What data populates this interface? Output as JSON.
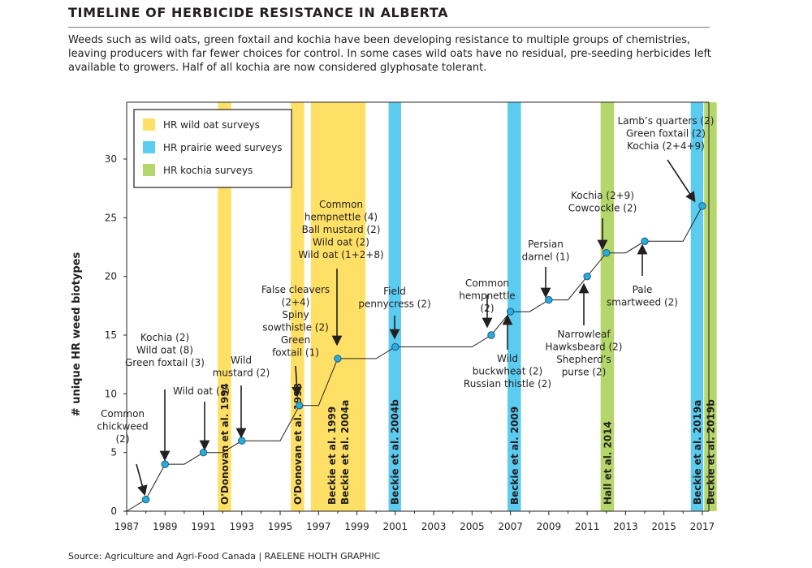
{
  "header": {
    "title": "TIMELINE OF HERBICIDE RESISTANCE IN ALBERTA",
    "description": "Weeds such as wild oats, green foxtail and kochia have been developing resistance to multiple groups of chemistries, leaving producers with far fewer choices for control. In some cases wild oats have no residual, pre-seeding herbicides left available to growers. Half of all kochia are now considered glyphosate tolerant."
  },
  "footer": {
    "source": "Source: Agriculture and Agri-Food Canada  |  RAELENE HOLTH GRAPHIC"
  },
  "colors": {
    "wild_oat": "#ffe066",
    "prairie": "#5bcbf0",
    "kochia": "#b5d66b",
    "line": "#231f20",
    "point": "#29abe2"
  },
  "chart_data": {
    "type": "line",
    "xlim": [
      1987,
      1987.49
    ],
    "ylim": [
      0,
      35
    ],
    "xticks": [
      1987,
      1989,
      1991,
      1993,
      1995,
      1997,
      1999,
      2001,
      2003,
      2005,
      2007,
      2009,
      2011,
      2013,
      2015,
      2017
    ],
    "yticks": [
      0,
      5,
      10,
      15,
      20,
      25,
      30
    ],
    "ylabel": "# unique HR weed biotypes",
    "xlabel": "",
    "grid": false,
    "legend": {
      "position": "top-left",
      "items": [
        {
          "label": "HR wild oat surveys",
          "color": "#ffe066"
        },
        {
          "label": "HR prairie weed surveys",
          "color": "#5bcbf0"
        },
        {
          "label": "HR kochia surveys",
          "color": "#b5d66b"
        }
      ]
    },
    "series": [
      {
        "x": [
          1987,
          1988,
          1989,
          1990,
          1991,
          1992,
          1993,
          1994,
          1995,
          1996,
          1997,
          1998,
          1999,
          2000,
          2001,
          2002,
          2003,
          2004,
          2005,
          2006,
          2007,
          2008,
          2009,
          2010,
          2011,
          2012,
          2013,
          2014,
          2015,
          2016,
          2017
        ],
        "y": [
          0,
          1,
          4,
          4,
          5,
          5,
          6,
          6,
          6,
          9,
          9,
          13,
          13,
          13,
          14,
          14,
          14,
          14,
          14,
          15,
          17,
          17,
          18,
          18,
          20,
          22,
          22,
          23,
          23,
          23,
          26
        ]
      }
    ],
    "survey_bands": [
      {
        "type": "wild_oat",
        "x0": 1991.75,
        "x1": 1992.45,
        "label": "O'Donovan et al. 1994"
      },
      {
        "type": "wild_oat",
        "x0": 1995.55,
        "x1": 1996.25,
        "label": "O'Donovan et al. 1998"
      },
      {
        "type": "wild_oat",
        "x0": 1996.6,
        "x1": 1999.45,
        "label": "Beckie et al. 1999"
      },
      {
        "type": "wild_oat",
        "x0": 1996.6,
        "x1": 1999.45,
        "label": "Beckie et al. 2004a"
      },
      {
        "type": "prairie",
        "x0": 2000.65,
        "x1": 2001.3,
        "label": "Beckie et al. 2004b"
      },
      {
        "type": "prairie",
        "x0": 2006.85,
        "x1": 2007.55,
        "label": "Beckie et al. 2009"
      },
      {
        "type": "kochia",
        "x0": 2011.7,
        "x1": 2012.4,
        "label": "Hall et al. 2014"
      },
      {
        "type": "prairie",
        "x0": 2016.4,
        "x1": 2017.05,
        "label": "Beckie et al. 2019a"
      },
      {
        "type": "kochia",
        "x0": 2017.1,
        "x1": 2017.75,
        "label": "Beckie et al. 2019b"
      }
    ],
    "annotations": [
      {
        "x": 1988,
        "y": 1,
        "lines": [
          "Common",
          "chickweed",
          "(2)"
        ]
      },
      {
        "x": 1989,
        "y": 4,
        "lines": [
          "Kochia (2)",
          "Wild oat (8)",
          "Green foxtail (3)"
        ]
      },
      {
        "x": 1991,
        "y": 5,
        "lines": [
          "Wild oat (1)"
        ]
      },
      {
        "x": 1993,
        "y": 6,
        "lines": [
          "Wild",
          "mustard (2)"
        ]
      },
      {
        "x": 1996,
        "y": 9,
        "lines": [
          "False cleavers",
          "(2+4)",
          "Spiny",
          "sowthistle (2)",
          "Green",
          "foxtail (1)"
        ]
      },
      {
        "x": 1998,
        "y": 13,
        "lines": [
          "Common",
          "hempnettle (4)",
          "Ball mustard (2)",
          "Wild oat (2)",
          "Wild oat (1+2+8)"
        ]
      },
      {
        "x": 2001,
        "y": 14,
        "lines": [
          "Field",
          "pennycress (2)"
        ]
      },
      {
        "x": 2006,
        "y": 15,
        "lines": [
          "Common",
          "hempnettle",
          "(2)"
        ]
      },
      {
        "x": 2007,
        "y": 17,
        "lines": [
          "Wild",
          "buckwheat (2)",
          "Russian thistle (2)"
        ]
      },
      {
        "x": 2009,
        "y": 18,
        "lines": [
          "Persian",
          "darnel (1)"
        ]
      },
      {
        "x": 2011,
        "y": 20,
        "lines": [
          "Narrowleaf",
          "Hawksbeard (2)",
          "Shepherd’s",
          "purse (2)"
        ]
      },
      {
        "x": 2012,
        "y": 22,
        "lines": [
          "Kochia (2+9)",
          "Cowcockle (2)"
        ]
      },
      {
        "x": 2014,
        "y": 23,
        "lines": [
          "Pale",
          "smartweed (2)"
        ]
      },
      {
        "x": 2017,
        "y": 26,
        "lines": [
          "Lamb’s quarters (2)",
          "Green foxtail (2)",
          "Kochia (2+4+9)"
        ]
      }
    ]
  }
}
